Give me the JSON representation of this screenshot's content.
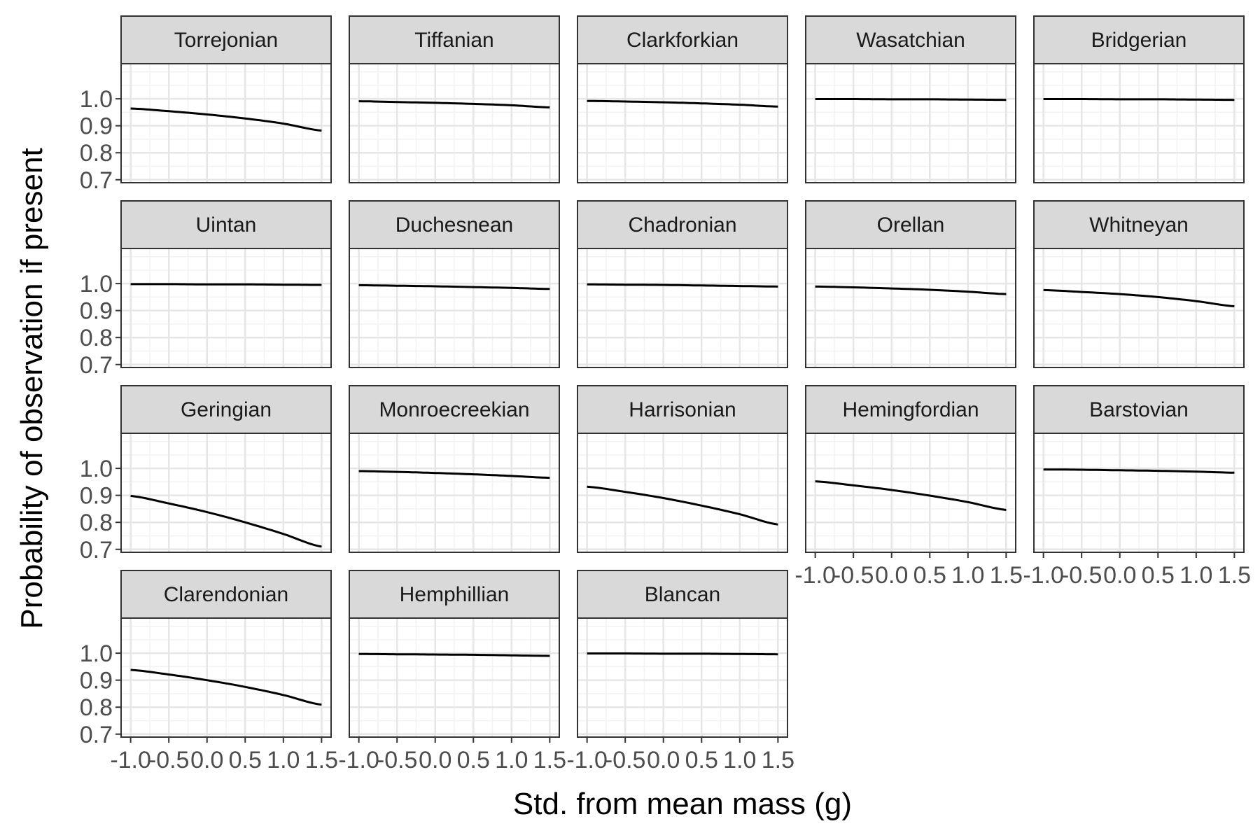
{
  "chart_data": {
    "type": "line",
    "layout": "facet_wrap",
    "ncol": 5,
    "xlabel": "Std. from mean mass (g)",
    "ylabel": "Probability of observation if present",
    "xlim": [
      -1.0,
      1.5
    ],
    "ylim": [
      0.7,
      1.0
    ],
    "x_ticks": [
      -1.0,
      -0.5,
      0.0,
      0.5,
      1.0,
      1.5
    ],
    "x_tick_labels": [
      "-1.0",
      "-0.5",
      "0.0",
      "0.5",
      "1.0",
      "1.5"
    ],
    "y_ticks": [
      0.7,
      0.8,
      0.9,
      1.0
    ],
    "y_tick_labels": [
      "0.7",
      "0.8",
      "0.9",
      "1.0"
    ],
    "grid": true,
    "x": [
      -1.0,
      -0.5,
      0.0,
      0.5,
      1.0,
      1.5
    ],
    "series": [
      {
        "name": "Torrejonian",
        "values": [
          0.964,
          0.954,
          0.942,
          0.927,
          0.908,
          0.882
        ]
      },
      {
        "name": "Tiffanian",
        "values": [
          0.991,
          0.988,
          0.985,
          0.981,
          0.976,
          0.968
        ]
      },
      {
        "name": "Clarkforkian",
        "values": [
          0.992,
          0.99,
          0.987,
          0.983,
          0.978,
          0.971
        ]
      },
      {
        "name": "Wasatchian",
        "values": [
          0.999,
          0.999,
          0.998,
          0.998,
          0.997,
          0.996
        ]
      },
      {
        "name": "Bridgerian",
        "values": [
          0.999,
          0.999,
          0.998,
          0.998,
          0.997,
          0.996
        ]
      },
      {
        "name": "Uintan",
        "values": [
          0.998,
          0.998,
          0.997,
          0.997,
          0.996,
          0.995
        ]
      },
      {
        "name": "Duchesnean",
        "values": [
          0.994,
          0.992,
          0.99,
          0.987,
          0.984,
          0.98
        ]
      },
      {
        "name": "Chadronian",
        "values": [
          0.997,
          0.996,
          0.995,
          0.993,
          0.991,
          0.989
        ]
      },
      {
        "name": "Orellan",
        "values": [
          0.989,
          0.986,
          0.982,
          0.977,
          0.97,
          0.961
        ]
      },
      {
        "name": "Whitneyan",
        "values": [
          0.976,
          0.969,
          0.961,
          0.95,
          0.935,
          0.916
        ]
      },
      {
        "name": "Geringian",
        "values": [
          0.898,
          0.87,
          0.838,
          0.8,
          0.757,
          0.71
        ]
      },
      {
        "name": "Monroecreekian",
        "values": [
          0.99,
          0.987,
          0.983,
          0.978,
          0.972,
          0.965
        ]
      },
      {
        "name": "Harrisonian",
        "values": [
          0.932,
          0.913,
          0.89,
          0.862,
          0.83,
          0.792
        ]
      },
      {
        "name": "Hemingfordian",
        "values": [
          0.952,
          0.937,
          0.92,
          0.899,
          0.875,
          0.846
        ]
      },
      {
        "name": "Barstovian",
        "values": [
          0.996,
          0.995,
          0.993,
          0.991,
          0.988,
          0.984
        ]
      },
      {
        "name": "Clarendonian",
        "values": [
          0.938,
          0.921,
          0.9,
          0.875,
          0.845,
          0.809
        ]
      },
      {
        "name": "Hemphillian",
        "values": [
          0.997,
          0.996,
          0.995,
          0.994,
          0.992,
          0.99
        ]
      },
      {
        "name": "Blancan",
        "values": [
          0.999,
          0.999,
          0.998,
          0.998,
          0.997,
          0.996
        ]
      }
    ]
  }
}
